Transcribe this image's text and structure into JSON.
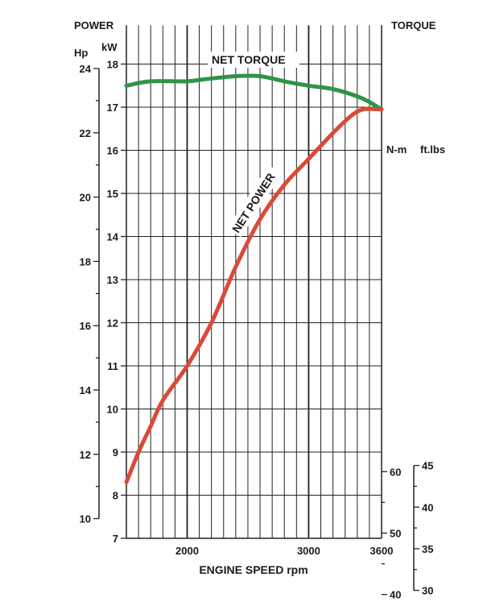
{
  "chart_data": {
    "type": "line",
    "title": "",
    "xlabel": "ENGINE SPEED rpm",
    "x_ticks": [
      2000,
      3000,
      3600
    ],
    "xlim": [
      1500,
      3600
    ],
    "left_axes": {
      "header": "POWER",
      "kw": {
        "unit": "kW",
        "ticks": [
          7,
          8,
          9,
          10,
          11,
          12,
          13,
          14,
          15,
          16,
          17,
          18
        ],
        "ylim": [
          7,
          18.9
        ]
      },
      "hp": {
        "unit": "Hp",
        "ticks": [
          10,
          12,
          14,
          16,
          18,
          20,
          22,
          24
        ]
      }
    },
    "right_axes": {
      "header": "TORQUE",
      "nm": {
        "unit": "N-m",
        "ticks": [
          40,
          50,
          60
        ]
      },
      "ftlbs": {
        "unit": "ft.lbs",
        "ticks": [
          30,
          35,
          40,
          45
        ]
      }
    },
    "series": [
      {
        "name": "NET TORQUE",
        "color": "#2e9447",
        "axis": "kW",
        "x": [
          1500,
          1700,
          2000,
          2150,
          2400,
          2600,
          2800,
          3000,
          3200,
          3400,
          3500,
          3600
        ],
        "values": [
          17.5,
          17.6,
          17.6,
          17.65,
          17.72,
          17.72,
          17.6,
          17.5,
          17.42,
          17.25,
          17.12,
          16.95
        ]
      },
      {
        "name": "NET POWER",
        "color": "#d94a38",
        "axis": "kW",
        "x": [
          1500,
          1600,
          1700,
          1800,
          2000,
          2200,
          2400,
          2600,
          2800,
          3000,
          3200,
          3350,
          3450,
          3600
        ],
        "values": [
          8.3,
          9.0,
          9.6,
          10.2,
          11.0,
          12.0,
          13.3,
          14.4,
          15.2,
          15.8,
          16.4,
          16.8,
          16.95,
          16.95
        ]
      }
    ]
  },
  "style": {
    "grid_color": "#222222",
    "axis_color": "#222222"
  }
}
